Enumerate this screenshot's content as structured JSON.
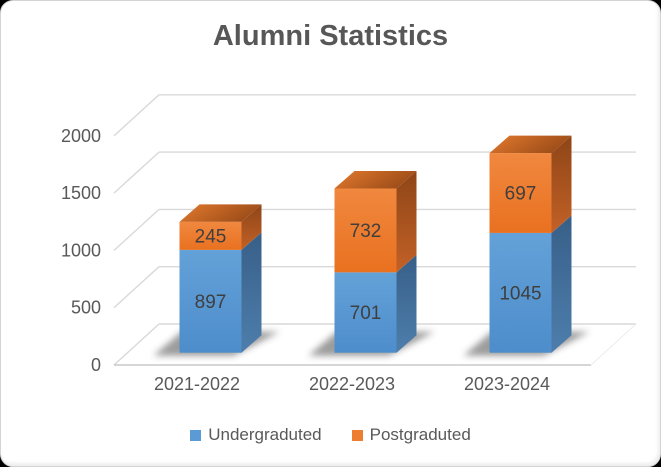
{
  "window": {
    "background": "#000000",
    "card_background": "#ffffff",
    "card_border": "#d4d4d4"
  },
  "chart_data": {
    "type": "bar",
    "subtype": "stacked-3d",
    "title": "Alumni Statistics",
    "categories": [
      "2021-2022",
      "2022-2023",
      "2023-2024"
    ],
    "series": [
      {
        "name": "Undergraduted",
        "color": "#5B9BD5",
        "side_color": "#41719C",
        "values": [
          897,
          701,
          1045
        ]
      },
      {
        "name": "Postgraduted",
        "color": "#ED7D31",
        "side_color": "#AE5A21",
        "values": [
          245,
          732,
          697
        ]
      }
    ],
    "data_labels": [
      {
        "category": "2021-2022",
        "Undergraduted": 897,
        "Postgraduted": 245
      },
      {
        "category": "2022-2023",
        "Undergraduted": 701,
        "Postgraduted": 732
      },
      {
        "category": "2023-2024",
        "Undergraduted": 1045,
        "Postgraduted": 697
      }
    ],
    "yticks": [
      0,
      500,
      1000,
      1500,
      2000
    ],
    "ylim": [
      0,
      2000
    ],
    "grid": true,
    "legend_position": "bottom",
    "title_color": "#575757",
    "axis_text_color": "#595959",
    "value_label_color": "#3f3f3f",
    "gridline_color": "#d9d9d9"
  }
}
